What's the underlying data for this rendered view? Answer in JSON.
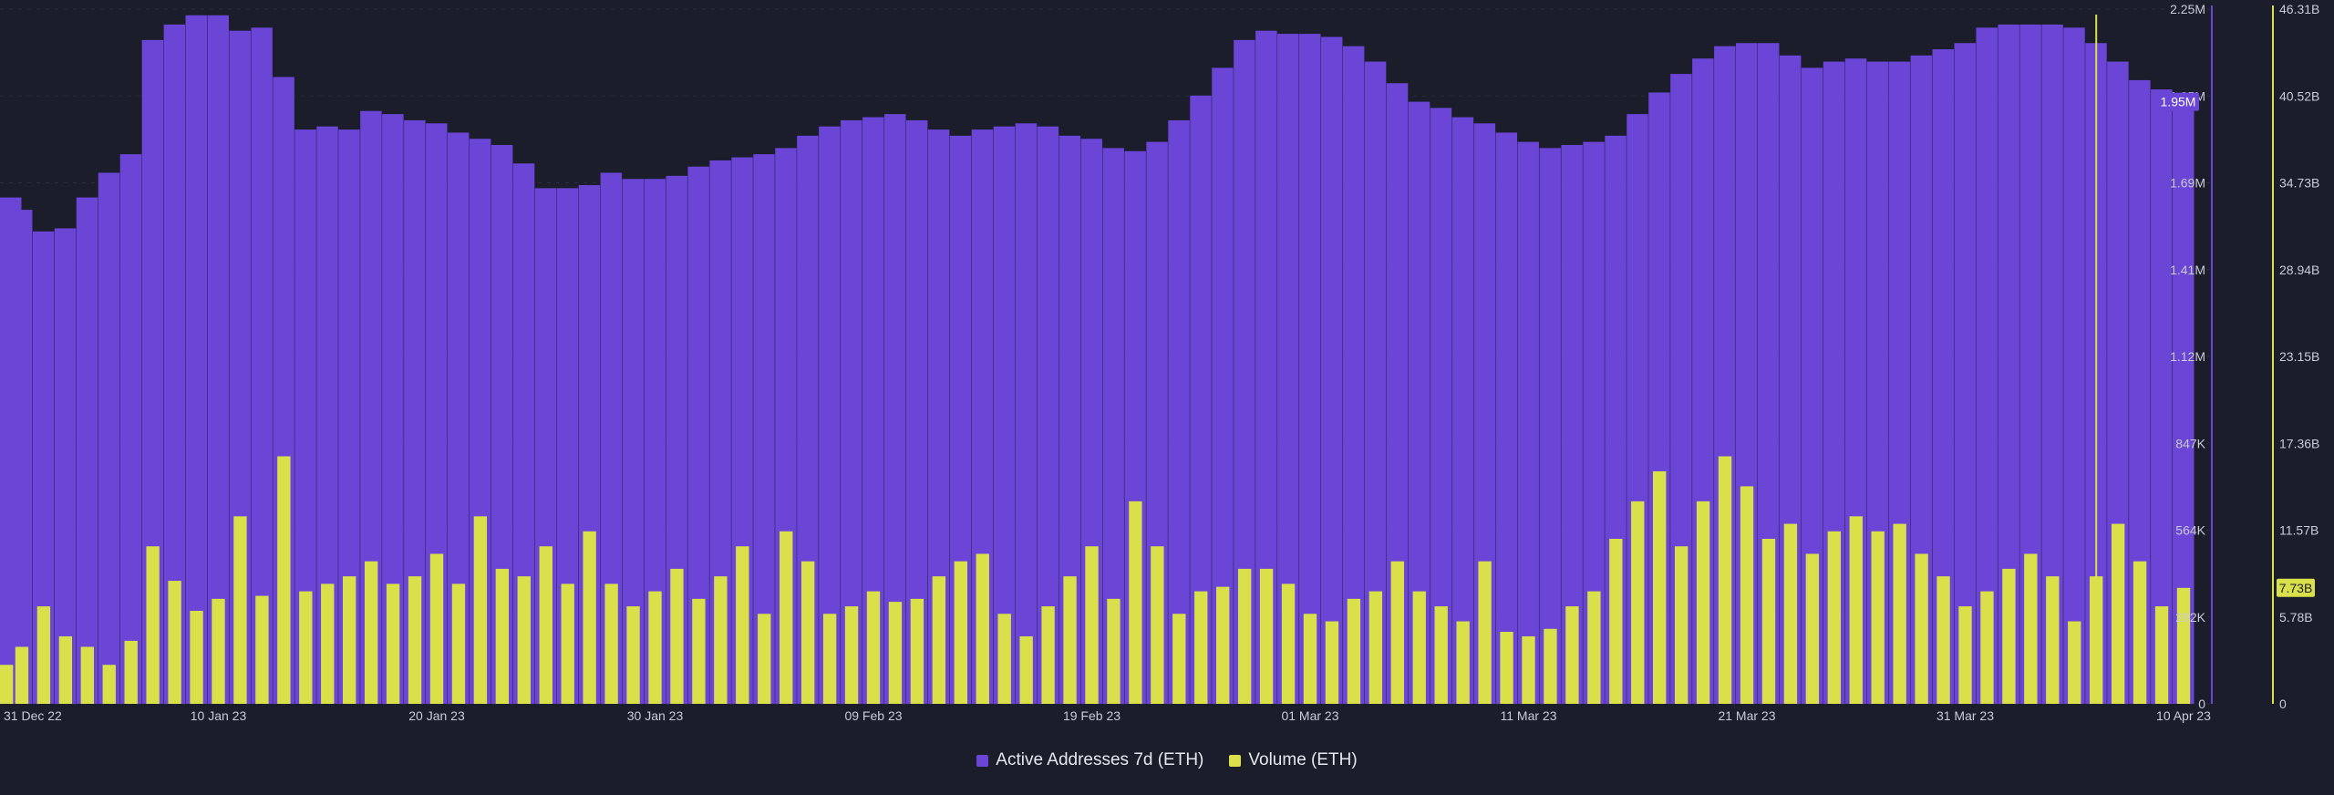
{
  "colors": {
    "background": "#1b1d2b",
    "addresses": "#6a45d6",
    "volume": "#d9e04a",
    "axis_text": "#c9cbd6"
  },
  "chart_data": {
    "type": "bar",
    "x_range": [
      "2022-12-31",
      "2023-04-10"
    ],
    "xticks": [
      "31 Dec 22",
      "10 Jan 23",
      "20 Jan 23",
      "30 Jan 23",
      "09 Feb 23",
      "19 Feb 23",
      "01 Mar 23",
      "11 Mar 23",
      "21 Mar 23",
      "31 Mar 23",
      "10 Apr 23"
    ],
    "y_left": {
      "ticks": [
        "0",
        "282K",
        "564K",
        "847K",
        "1.12M",
        "1.41M",
        "1.69M",
        "1.95M",
        "2.25M"
      ],
      "range": [
        0,
        2250000
      ],
      "current_label": "1.95M"
    },
    "y_right": {
      "ticks": [
        "0",
        "5.78B",
        "11.57B",
        "17.36B",
        "23.15B",
        "28.94B",
        "34.73B",
        "40.52B",
        "46.31B"
      ],
      "range": [
        0,
        46310000000
      ],
      "current_label": "7.73B"
    },
    "series": [
      {
        "name": "Active Addresses 7d (ETH)",
        "axis": "left",
        "color": "#6a45d6",
        "dates": [
          "2022-12-31",
          "2023-01-01",
          "2023-01-02",
          "2023-01-03",
          "2023-01-04",
          "2023-01-05",
          "2023-01-06",
          "2023-01-07",
          "2023-01-08",
          "2023-01-09",
          "2023-01-10",
          "2023-01-11",
          "2023-01-12",
          "2023-01-13",
          "2023-01-14",
          "2023-01-15",
          "2023-01-16",
          "2023-01-17",
          "2023-01-18",
          "2023-01-19",
          "2023-01-20",
          "2023-01-21",
          "2023-01-22",
          "2023-01-23",
          "2023-01-24",
          "2023-01-25",
          "2023-01-26",
          "2023-01-27",
          "2023-01-28",
          "2023-01-29",
          "2023-01-30",
          "2023-01-31",
          "2023-02-01",
          "2023-02-02",
          "2023-02-03",
          "2023-02-04",
          "2023-02-05",
          "2023-02-06",
          "2023-02-07",
          "2023-02-08",
          "2023-02-09",
          "2023-02-10",
          "2023-02-11",
          "2023-02-12",
          "2023-02-13",
          "2023-02-14",
          "2023-02-15",
          "2023-02-16",
          "2023-02-17",
          "2023-02-18",
          "2023-02-19",
          "2023-02-20",
          "2023-02-21",
          "2023-02-22",
          "2023-02-23",
          "2023-02-24",
          "2023-02-25",
          "2023-02-26",
          "2023-02-27",
          "2023-02-28",
          "2023-03-01",
          "2023-03-02",
          "2023-03-03",
          "2023-03-04",
          "2023-03-05",
          "2023-03-06",
          "2023-03-07",
          "2023-03-08",
          "2023-03-09",
          "2023-03-10",
          "2023-03-11",
          "2023-03-12",
          "2023-03-13",
          "2023-03-14",
          "2023-03-15",
          "2023-03-16",
          "2023-03-17",
          "2023-03-18",
          "2023-03-19",
          "2023-03-20",
          "2023-03-21",
          "2023-03-22",
          "2023-03-23",
          "2023-03-24",
          "2023-03-25",
          "2023-03-26",
          "2023-03-27",
          "2023-03-28",
          "2023-03-29",
          "2023-03-30",
          "2023-03-31",
          "2023-04-01",
          "2023-04-02",
          "2023-04-03",
          "2023-04-04",
          "2023-04-05",
          "2023-04-06",
          "2023-04-07",
          "2023-04-08",
          "2023-04-09",
          "2023-04-10"
        ],
        "values": [
          1640000,
          1600000,
          1530000,
          1540000,
          1640000,
          1720000,
          1780000,
          2150000,
          2200000,
          2230000,
          2230000,
          2180000,
          2190000,
          2030000,
          1860000,
          1870000,
          1860000,
          1920000,
          1910000,
          1890000,
          1880000,
          1850000,
          1830000,
          1810000,
          1750000,
          1670000,
          1670000,
          1680000,
          1720000,
          1700000,
          1700000,
          1710000,
          1740000,
          1760000,
          1770000,
          1780000,
          1800000,
          1840000,
          1870000,
          1890000,
          1900000,
          1910000,
          1890000,
          1860000,
          1840000,
          1860000,
          1870000,
          1880000,
          1870000,
          1840000,
          1830000,
          1800000,
          1790000,
          1820000,
          1890000,
          1970000,
          2060000,
          2150000,
          2180000,
          2170000,
          2170000,
          2160000,
          2130000,
          2080000,
          2010000,
          1950000,
          1930000,
          1900000,
          1880000,
          1850000,
          1820000,
          1800000,
          1810000,
          1820000,
          1840000,
          1910000,
          1980000,
          2040000,
          2090000,
          2130000,
          2140000,
          2140000,
          2100000,
          2060000,
          2080000,
          2090000,
          2080000,
          2080000,
          2100000,
          2120000,
          2140000,
          2190000,
          2200000,
          2200000,
          2200000,
          2190000,
          2140000,
          2080000,
          2020000,
          1990000,
          1950000
        ]
      },
      {
        "name": "Volume (ETH)",
        "axis": "right",
        "color": "#d9e04a",
        "dates": [
          "2022-12-31",
          "2023-01-01",
          "2023-01-02",
          "2023-01-03",
          "2023-01-04",
          "2023-01-05",
          "2023-01-06",
          "2023-01-07",
          "2023-01-08",
          "2023-01-09",
          "2023-01-10",
          "2023-01-11",
          "2023-01-12",
          "2023-01-13",
          "2023-01-14",
          "2023-01-15",
          "2023-01-16",
          "2023-01-17",
          "2023-01-18",
          "2023-01-19",
          "2023-01-20",
          "2023-01-21",
          "2023-01-22",
          "2023-01-23",
          "2023-01-24",
          "2023-01-25",
          "2023-01-26",
          "2023-01-27",
          "2023-01-28",
          "2023-01-29",
          "2023-01-30",
          "2023-01-31",
          "2023-02-01",
          "2023-02-02",
          "2023-02-03",
          "2023-02-04",
          "2023-02-05",
          "2023-02-06",
          "2023-02-07",
          "2023-02-08",
          "2023-02-09",
          "2023-02-10",
          "2023-02-11",
          "2023-02-12",
          "2023-02-13",
          "2023-02-14",
          "2023-02-15",
          "2023-02-16",
          "2023-02-17",
          "2023-02-18",
          "2023-02-19",
          "2023-02-20",
          "2023-02-21",
          "2023-02-22",
          "2023-02-23",
          "2023-02-24",
          "2023-02-25",
          "2023-02-26",
          "2023-02-27",
          "2023-02-28",
          "2023-03-01",
          "2023-03-02",
          "2023-03-03",
          "2023-03-04",
          "2023-03-05",
          "2023-03-06",
          "2023-03-07",
          "2023-03-08",
          "2023-03-09",
          "2023-03-10",
          "2023-03-11",
          "2023-03-12",
          "2023-03-13",
          "2023-03-14",
          "2023-03-15",
          "2023-03-16",
          "2023-03-17",
          "2023-03-18",
          "2023-03-19",
          "2023-03-20",
          "2023-03-21",
          "2023-03-22",
          "2023-03-23",
          "2023-03-24",
          "2023-03-25",
          "2023-03-26",
          "2023-03-27",
          "2023-03-28",
          "2023-03-29",
          "2023-03-30",
          "2023-03-31",
          "2023-04-01",
          "2023-04-02",
          "2023-04-03",
          "2023-04-04",
          "2023-04-05",
          "2023-04-06",
          "2023-04-07",
          "2023-04-08",
          "2023-04-09",
          "2023-04-10"
        ],
        "values": [
          2600000000,
          3800000000,
          6500000000,
          4500000000,
          3800000000,
          2600000000,
          4200000000,
          10500000000,
          8200000000,
          6200000000,
          7000000000,
          12500000000,
          7200000000,
          16500000000,
          7500000000,
          8000000000,
          8500000000,
          9500000000,
          8000000000,
          8500000000,
          10000000000,
          8000000000,
          12500000000,
          9000000000,
          8500000000,
          10500000000,
          8000000000,
          11500000000,
          8000000000,
          6500000000,
          7500000000,
          9000000000,
          7000000000,
          8500000000,
          10500000000,
          6000000000,
          11500000000,
          9500000000,
          6000000000,
          6500000000,
          7500000000,
          6800000000,
          7000000000,
          8500000000,
          9500000000,
          10000000000,
          6000000000,
          4500000000,
          6500000000,
          8500000000,
          10500000000,
          7000000000,
          13500000000,
          10500000000,
          6000000000,
          7500000000,
          7800000000,
          9000000000,
          9000000000,
          8000000000,
          6000000000,
          5500000000,
          7000000000,
          7500000000,
          9500000000,
          7500000000,
          6500000000,
          5500000000,
          9500000000,
          4800000000,
          4500000000,
          5000000000,
          6500000000,
          7500000000,
          11000000000,
          13500000000,
          15500000000,
          10500000000,
          13500000000,
          16500000000,
          14500000000,
          11000000000,
          12000000000,
          10000000000,
          11500000000,
          12500000000,
          11500000000,
          12000000000,
          10000000000,
          8500000000,
          6500000000,
          7500000000,
          9000000000,
          10000000000,
          8500000000,
          5500000000,
          8500000000,
          12000000000,
          9500000000,
          6500000000,
          7730000000
        ]
      }
    ],
    "cursor_date": "2023-04-06",
    "grid": false,
    "legend_position": "bottom-center"
  },
  "legend": {
    "addresses_label": "Active Addresses 7d (ETH)",
    "volume_label": "Volume (ETH)"
  }
}
